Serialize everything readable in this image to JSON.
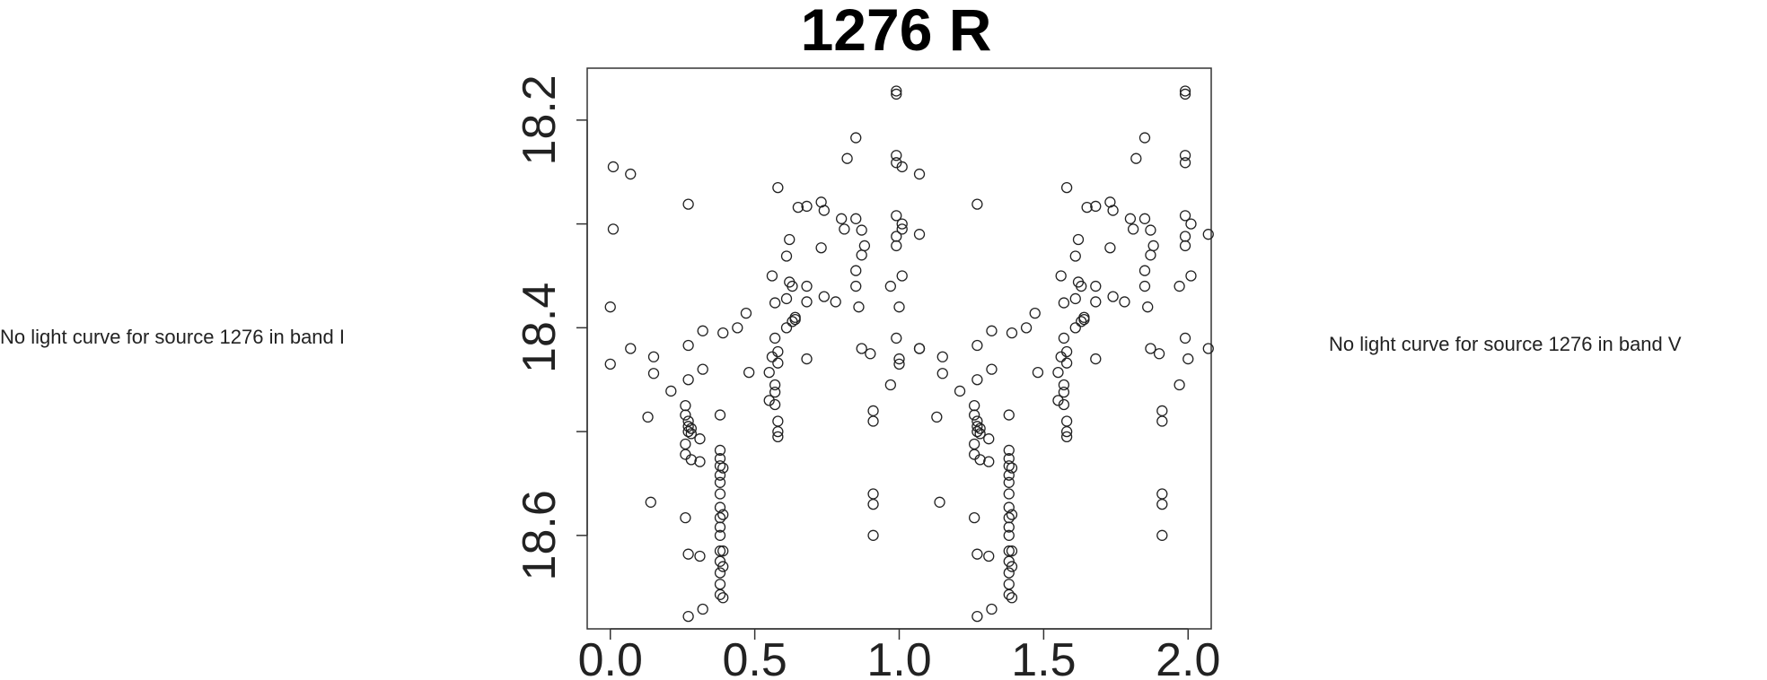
{
  "notes": {
    "left": "No light curve for source 1276 in band I",
    "right": "No light curve for source 1276 in band V"
  },
  "chart_data": {
    "type": "scatter",
    "title": "1276 R",
    "xlabel": "",
    "ylabel": "",
    "xlim": [
      -0.08,
      2.08
    ],
    "ylim": [
      18.15,
      18.69
    ],
    "y_inverted": true,
    "grid": false,
    "x_ticks": [
      0.0,
      0.5,
      1.0,
      1.5,
      2.0
    ],
    "x_tick_labels": [
      "0.0",
      "0.5",
      "1.0",
      "1.5",
      "2.0"
    ],
    "y_ticks": [
      18.2,
      18.3,
      18.4,
      18.5,
      18.6
    ],
    "y_tick_labels": [
      "18.2",
      "",
      "18.4",
      "",
      "18.6"
    ],
    "series": [
      {
        "marker": "open-circle",
        "points": [
          [
            0.0,
            18.38
          ],
          [
            0.0,
            18.435
          ],
          [
            0.01,
            18.245
          ],
          [
            0.01,
            18.305
          ],
          [
            0.07,
            18.252
          ],
          [
            0.07,
            18.42
          ],
          [
            0.13,
            18.486
          ],
          [
            0.14,
            18.568
          ],
          [
            0.15,
            18.444
          ],
          [
            0.15,
            18.428
          ],
          [
            0.21,
            18.461
          ],
          [
            0.26,
            18.475
          ],
          [
            0.26,
            18.484
          ],
          [
            0.26,
            18.512
          ],
          [
            0.26,
            18.522
          ],
          [
            0.26,
            18.583
          ],
          [
            0.27,
            18.49
          ],
          [
            0.27,
            18.495
          ],
          [
            0.27,
            18.5
          ],
          [
            0.27,
            18.618
          ],
          [
            0.27,
            18.417
          ],
          [
            0.27,
            18.281
          ],
          [
            0.27,
            18.45
          ],
          [
            0.27,
            18.678
          ],
          [
            0.28,
            18.502
          ],
          [
            0.28,
            18.497
          ],
          [
            0.28,
            18.527
          ],
          [
            0.31,
            18.507
          ],
          [
            0.31,
            18.529
          ],
          [
            0.31,
            18.62
          ],
          [
            0.32,
            18.671
          ],
          [
            0.32,
            18.403
          ],
          [
            0.32,
            18.44
          ],
          [
            0.38,
            18.518
          ],
          [
            0.38,
            18.526
          ],
          [
            0.38,
            18.533
          ],
          [
            0.38,
            18.542
          ],
          [
            0.38,
            18.549
          ],
          [
            0.38,
            18.56
          ],
          [
            0.38,
            18.573
          ],
          [
            0.38,
            18.583
          ],
          [
            0.38,
            18.592
          ],
          [
            0.38,
            18.6
          ],
          [
            0.38,
            18.615
          ],
          [
            0.38,
            18.625
          ],
          [
            0.38,
            18.636
          ],
          [
            0.38,
            18.647
          ],
          [
            0.38,
            18.657
          ],
          [
            0.38,
            18.484
          ],
          [
            0.39,
            18.405
          ],
          [
            0.39,
            18.535
          ],
          [
            0.39,
            18.58
          ],
          [
            0.39,
            18.615
          ],
          [
            0.39,
            18.63
          ],
          [
            0.39,
            18.66
          ],
          [
            0.44,
            18.4
          ],
          [
            0.47,
            18.386
          ],
          [
            0.48,
            18.443
          ],
          [
            0.55,
            18.443
          ],
          [
            0.55,
            18.47
          ],
          [
            0.56,
            18.35
          ],
          [
            0.56,
            18.428
          ],
          [
            0.57,
            18.376
          ],
          [
            0.57,
            18.41
          ],
          [
            0.57,
            18.455
          ],
          [
            0.57,
            18.462
          ],
          [
            0.57,
            18.474
          ],
          [
            0.58,
            18.49
          ],
          [
            0.58,
            18.5
          ],
          [
            0.58,
            18.505
          ],
          [
            0.58,
            18.434
          ],
          [
            0.58,
            18.423
          ],
          [
            0.58,
            18.265
          ],
          [
            0.61,
            18.4
          ],
          [
            0.61,
            18.372
          ],
          [
            0.61,
            18.331
          ],
          [
            0.62,
            18.315
          ],
          [
            0.62,
            18.356
          ],
          [
            0.63,
            18.36
          ],
          [
            0.63,
            18.394
          ],
          [
            0.64,
            18.39
          ],
          [
            0.64,
            18.392
          ],
          [
            0.65,
            18.284
          ],
          [
            0.68,
            18.43
          ],
          [
            0.68,
            18.375
          ],
          [
            0.68,
            18.36
          ],
          [
            0.68,
            18.283
          ],
          [
            0.73,
            18.279
          ],
          [
            0.73,
            18.323
          ],
          [
            0.74,
            18.37
          ],
          [
            0.74,
            18.287
          ],
          [
            0.78,
            18.375
          ],
          [
            0.8,
            18.295
          ],
          [
            0.81,
            18.305
          ],
          [
            0.82,
            18.237
          ],
          [
            0.85,
            18.36
          ],
          [
            0.85,
            18.345
          ],
          [
            0.85,
            18.295
          ],
          [
            0.85,
            18.217
          ],
          [
            0.86,
            18.38
          ],
          [
            0.87,
            18.306
          ],
          [
            0.87,
            18.33
          ],
          [
            0.87,
            18.42
          ],
          [
            0.88,
            18.321
          ],
          [
            0.9,
            18.425
          ],
          [
            0.91,
            18.48
          ],
          [
            0.91,
            18.49
          ],
          [
            0.91,
            18.56
          ],
          [
            0.91,
            18.57
          ],
          [
            0.91,
            18.6
          ],
          [
            0.97,
            18.36
          ],
          [
            0.97,
            18.455
          ],
          [
            0.99,
            18.172
          ],
          [
            0.99,
            18.175
          ],
          [
            0.99,
            18.234
          ],
          [
            0.99,
            18.241
          ],
          [
            0.99,
            18.292
          ],
          [
            0.99,
            18.312
          ],
          [
            0.99,
            18.321
          ],
          [
            0.99,
            18.41
          ],
          [
            1.0,
            18.43
          ],
          [
            1.01,
            18.3
          ],
          [
            1.01,
            18.35
          ],
          [
            1.07,
            18.31
          ],
          [
            1.07,
            18.42
          ]
        ]
      }
    ]
  }
}
